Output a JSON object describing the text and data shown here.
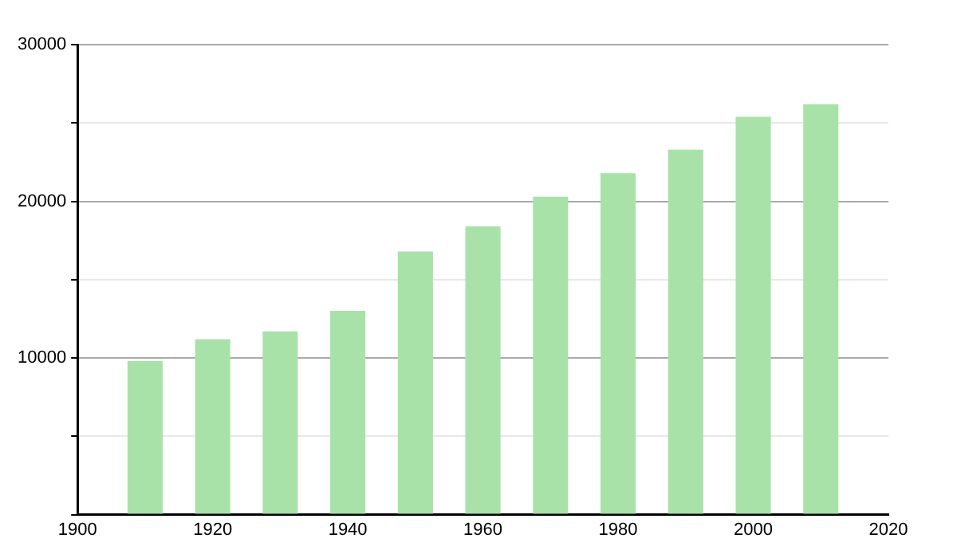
{
  "chart_data": {
    "type": "bar",
    "x": [
      1910,
      1920,
      1930,
      1940,
      1950,
      1960,
      1970,
      1980,
      1990,
      2000,
      2010
    ],
    "values": [
      9800,
      11200,
      11700,
      13000,
      16800,
      18400,
      20300,
      21800,
      23300,
      25400,
      26200
    ],
    "color": "#a8e2a8",
    "xlim": [
      1900,
      2020
    ],
    "xticks": [
      1900,
      1920,
      1940,
      1960,
      1980,
      2000,
      2020
    ],
    "ylim": [
      0,
      30000
    ],
    "yticks": [
      {
        "value": 0,
        "label": null
      },
      {
        "value": 5000,
        "label": null
      },
      10000,
      {
        "value": 15000,
        "label": null
      },
      20000,
      {
        "value": 25000,
        "label": null
      },
      30000
    ],
    "grid": "y",
    "legend": false
  }
}
